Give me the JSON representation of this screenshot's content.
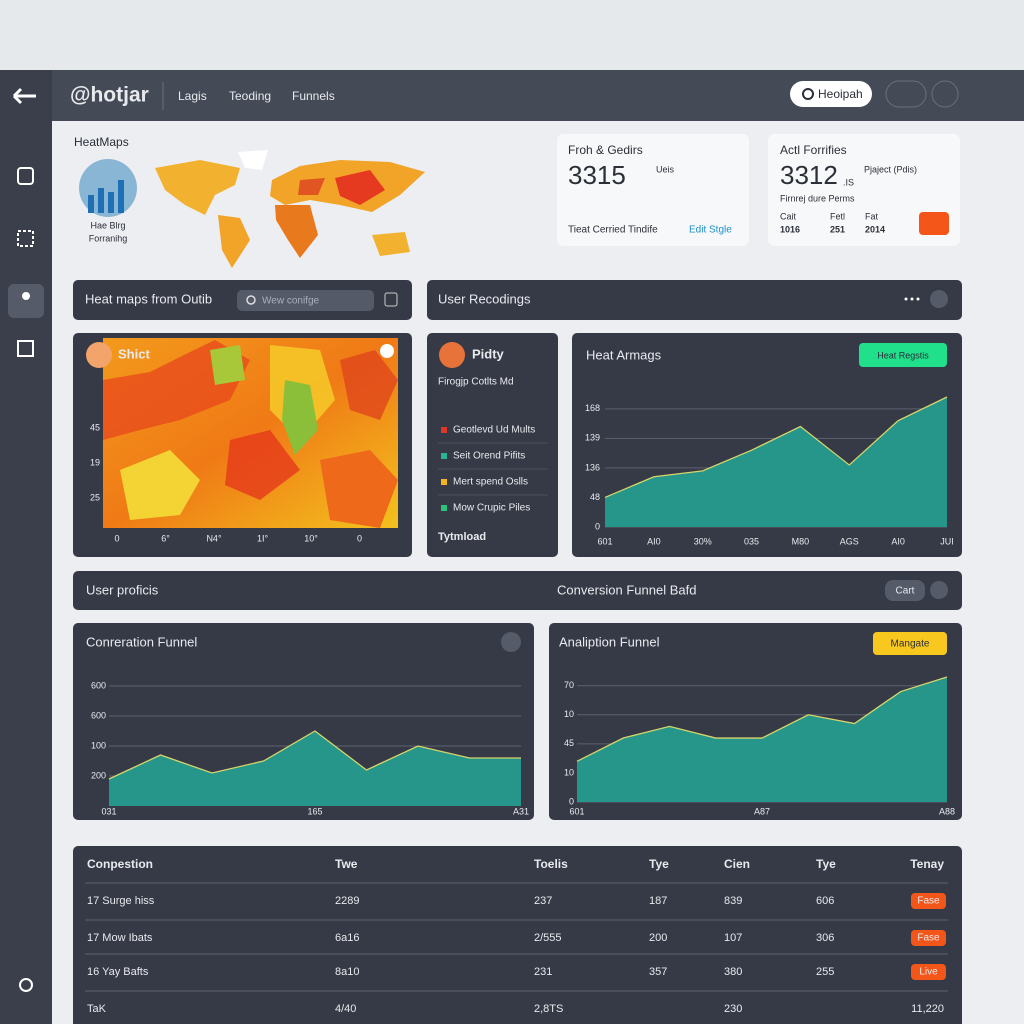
{
  "nav": {
    "logo": "@hotjar",
    "links": [
      "Lagis",
      "Teoding",
      "Funnels"
    ],
    "button": "Heoipah"
  },
  "overview": {
    "title": "HeatMaps",
    "globe_caption": "Hae Blrg",
    "globe_subcaption": "Forranihg"
  },
  "cards": [
    {
      "title": "Froh & Gedirs",
      "value": "3315",
      "unit": "Ueis",
      "footer": "Tieat Cerried Tindife",
      "link": "Edit Stgle"
    },
    {
      "title": "Actl Forrifies",
      "value": "3312",
      "unit": ".IS",
      "note": "Pjaject (Pdis)",
      "subtitle": "Firnrej dure Perms",
      "stats": [
        {
          "label": "Cait",
          "value": "1016"
        },
        {
          "label": "Fetl",
          "value": "251"
        },
        {
          "label": "Fat",
          "value": "2014"
        }
      ]
    }
  ],
  "toolbar": {
    "heatmaps_title": "Heat maps from Outib",
    "search": "Wew conifge",
    "recordings_title": "User Recodings"
  },
  "heatmap": {
    "title": "Shict",
    "y_labels": [
      "45",
      "19",
      "25"
    ],
    "x_labels": [
      "0",
      "6°",
      "N4°",
      "1I°",
      "10°",
      "0"
    ]
  },
  "list": {
    "title": "Pidty",
    "subtitle": "Firogjp Cotlts Md",
    "items": [
      "Geotlevd Ud Mults",
      "Seit Orend Pifits",
      "Mert spend Oslls",
      "Mow Crupic Piles"
    ],
    "colors": [
      "#e0352b",
      "#2bb39a",
      "#f2b51c",
      "#27c47a"
    ],
    "footer": "Tytmload"
  },
  "chart_buttons": {
    "heat": "Heat Regstis",
    "analiption": "Mangate"
  },
  "section_bar": {
    "left": "User proficis",
    "center": "Conversion Funnel Bafd",
    "button": "Cart"
  },
  "chart_data": [
    {
      "type": "area",
      "title": "Heat Armags",
      "categories": [
        "601",
        "AI0",
        "30%",
        "035",
        "M80",
        "AGS",
        "AI0",
        "JUI"
      ],
      "values": [
        1.0,
        1.7,
        1.9,
        2.6,
        3.4,
        2.1,
        3.6,
        4.4
      ],
      "color": "#27968a",
      "line_color": "#d6d46a",
      "ylim": [
        0,
        4.4
      ],
      "yticks": [
        0,
        {
          "value": 1,
          "label": "48"
        },
        {
          "value": 2,
          "label": "136"
        },
        {
          "value": 3,
          "label": "139"
        },
        {
          "value": 4,
          "label": "168"
        }
      ],
      "grid": true
    },
    {
      "type": "area",
      "title": "Conreration Funnel",
      "categories": [
        "031",
        null,
        null,
        null,
        "165",
        null,
        null,
        null,
        "A31"
      ],
      "values": [
        0.9,
        1.7,
        1.1,
        1.5,
        2.5,
        1.2,
        2.0,
        1.6,
        1.6
      ],
      "color": "#27968a",
      "line_color": "#d6d46a",
      "ylim": [
        0,
        4
      ],
      "yticks": [
        {
          "value": 1,
          "label": "200"
        },
        {
          "value": 2,
          "label": "100"
        },
        {
          "value": 3,
          "label": "600"
        },
        {
          "value": 4,
          "label": "600"
        }
      ],
      "grid": true
    },
    {
      "type": "area",
      "title": "Analiption Funnel",
      "categories": [
        "601",
        null,
        null,
        null,
        "A87",
        null,
        null,
        null,
        "A88"
      ],
      "values": [
        1.4,
        2.2,
        2.6,
        2.2,
        2.2,
        3.0,
        2.7,
        3.8,
        4.3
      ],
      "color": "#27968a",
      "line_color": "#d6d46a",
      "ylim": [
        0,
        4.3
      ],
      "yticks": [
        0,
        {
          "value": 1,
          "label": "10"
        },
        {
          "value": 2,
          "label": "45"
        },
        {
          "value": 3,
          "label": "10"
        },
        {
          "value": 4,
          "label": "70"
        }
      ],
      "grid": true
    }
  ],
  "table": {
    "header": [
      "Conpestion",
      "Twe",
      "Toelis",
      "Tye",
      "Cien",
      "Tye",
      "Tenay"
    ],
    "rows": [
      [
        "17 Surge hiss",
        "2289",
        "237",
        "187",
        "839",
        "606",
        "Fase"
      ],
      [
        "17 Mow Ibats",
        "6a16",
        "2/555",
        "200",
        "107",
        "306",
        "Fase"
      ],
      [
        "16 Yay Bafts",
        "8a10",
        "231",
        "357",
        "380",
        "255",
        "Live"
      ],
      [
        "TaK",
        "4/40",
        "2,8TS",
        null,
        "230",
        null,
        "11,220"
      ]
    ]
  }
}
